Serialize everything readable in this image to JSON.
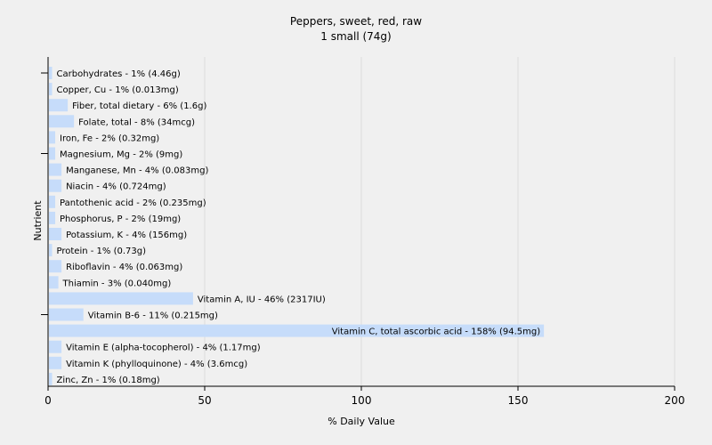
{
  "chart_data": {
    "type": "bar",
    "orientation": "horizontal",
    "title": "Peppers, sweet, red, raw",
    "subtitle": "1 small (74g)",
    "xlabel": "% Daily Value",
    "ylabel": "Nutrient",
    "xlim": [
      0,
      200
    ],
    "xticks": [
      0,
      50,
      100,
      150,
      200
    ],
    "grid": true,
    "bar_color": "#c6dcfa",
    "categories": [
      "Carbohydrates",
      "Copper, Cu",
      "Fiber, total dietary",
      "Folate, total",
      "Iron, Fe",
      "Magnesium, Mg",
      "Manganese, Mn",
      "Niacin",
      "Pantothenic acid",
      "Phosphorus, P",
      "Potassium, K",
      "Protein",
      "Riboflavin",
      "Thiamin",
      "Vitamin A, IU",
      "Vitamin B-6",
      "Vitamin C, total ascorbic acid",
      "Vitamin E (alpha-tocopherol)",
      "Vitamin K (phylloquinone)",
      "Zinc, Zn"
    ],
    "values": [
      1,
      1,
      6,
      8,
      2,
      2,
      4,
      4,
      2,
      2,
      4,
      1,
      4,
      3,
      46,
      11,
      158,
      4,
      4,
      1
    ],
    "bar_labels": [
      "Carbohydrates - 1% (4.46g)",
      "Copper, Cu - 1% (0.013mg)",
      "Fiber, total dietary - 6% (1.6g)",
      "Folate, total - 8% (34mcg)",
      "Iron, Fe - 2% (0.32mg)",
      "Magnesium, Mg - 2% (9mg)",
      "Manganese, Mn - 4% (0.083mg)",
      "Niacin - 4% (0.724mg)",
      "Pantothenic acid - 2% (0.235mg)",
      "Phosphorus, P - 2% (19mg)",
      "Potassium, K - 4% (156mg)",
      "Protein - 1% (0.73g)",
      "Riboflavin - 4% (0.063mg)",
      "Thiamin - 3% (0.040mg)",
      "Vitamin A, IU - 46% (2317IU)",
      "Vitamin B-6 - 11% (0.215mg)",
      "Vitamin C, total ascorbic acid - 158% (94.5mg)",
      "Vitamin E (alpha-tocopherol) - 4% (1.17mg)",
      "Vitamin K (phylloquinone) - 4% (3.6mcg)",
      "Zinc, Zn - 1% (0.18mg)"
    ]
  }
}
